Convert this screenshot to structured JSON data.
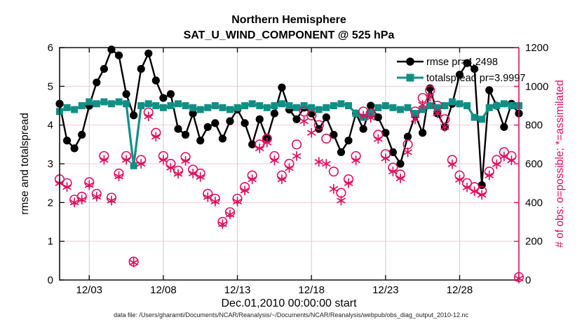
{
  "figure": {
    "title_line1": "Northern Hemisphere",
    "title_line2": "SAT_U_WIND_COMPONENT @ 525 hPa",
    "footer": "data file: /Users/gharamti/Documents/NCAR/Reanalysis/~/Documents/NCAR/Reanalysis/webpub/obs_diag_output_2010-12.nc"
  },
  "legend": {
    "rmse_label": "rmse pr=4.2498",
    "totalspread_label": "totalspread pr=3.9997"
  },
  "colors": {
    "rmse": "#000000",
    "totalspread": "#128f85",
    "obs": "#dd1060",
    "grid_vertical": "#cccccc",
    "grid_horizontal": "#f6c9d8",
    "axis_left": "#111111",
    "axis_right": "#dd1060"
  },
  "chart_data": {
    "type": "line",
    "title": "Northern Hemisphere — SAT_U_WIND_COMPONENT @ 525 hPa",
    "xlabel": "Dec.01,2010 00:00:00 start",
    "ylabel_left": "rmse and totalspread",
    "ylabel_right": "# of obs: o=possible; *=assimilated",
    "xlim_days": [
      0,
      31
    ],
    "ylim_left": [
      0,
      6
    ],
    "ylim_right": [
      0,
      1200
    ],
    "grid": true,
    "legend_position": "top-right-inside",
    "time_step_days": 0.5,
    "start_time": "Dec.01,2010 00:00:00",
    "xticks": [
      {
        "day": 2,
        "label": "12/03"
      },
      {
        "day": 7,
        "label": "12/08"
      },
      {
        "day": 12,
        "label": "12/13"
      },
      {
        "day": 17,
        "label": "12/18"
      },
      {
        "day": 22,
        "label": "12/23"
      },
      {
        "day": 27,
        "label": "12/28"
      }
    ],
    "yticks_left": [
      0,
      1,
      2,
      3,
      4,
      5,
      6
    ],
    "yticks_right": [
      0,
      200,
      400,
      600,
      800,
      1000,
      1200
    ],
    "series": [
      {
        "name": "rmse",
        "axis": "left",
        "marker": "filled-circle",
        "color": "#000000",
        "stat": "pr=4.2498",
        "values": [
          4.55,
          3.6,
          3.4,
          3.75,
          4.5,
          5.1,
          5.45,
          5.95,
          5.8,
          4.8,
          4.25,
          5.45,
          5.85,
          5.15,
          4.7,
          4.8,
          3.9,
          3.75,
          4.3,
          3.6,
          3.95,
          4.05,
          3.65,
          4.1,
          4.4,
          4.05,
          3.5,
          4.15,
          3.65,
          4.3,
          4.97,
          4.4,
          4.15,
          4.45,
          4.3,
          3.9,
          4.2,
          3.75,
          3.3,
          3.6,
          4.3,
          3.9,
          4.5,
          4.2,
          3.8,
          3.3,
          3.0,
          3.7,
          4.25,
          3.8,
          4.95,
          4.3,
          3.95,
          4.55,
          5.3,
          5.6,
          5.45,
          2.45,
          4.9,
          4.5,
          3.95,
          4.55,
          4.3
        ]
      },
      {
        "name": "totalspread",
        "axis": "left",
        "marker": "filled-square",
        "color": "#128f85",
        "stat": "pr=3.9997",
        "values": [
          4.35,
          4.45,
          4.4,
          4.5,
          4.6,
          4.55,
          4.6,
          4.55,
          4.6,
          4.55,
          2.95,
          4.5,
          4.55,
          4.5,
          4.45,
          4.5,
          4.55,
          4.5,
          4.45,
          4.4,
          4.45,
          4.5,
          4.45,
          4.4,
          4.45,
          4.5,
          4.55,
          4.5,
          4.45,
          4.5,
          4.55,
          4.5,
          4.45,
          4.5,
          4.45,
          4.4,
          4.45,
          4.5,
          4.55,
          4.5,
          4.3,
          4.2,
          4.3,
          4.45,
          4.5,
          4.45,
          4.4,
          4.45,
          4.3,
          4.4,
          4.5,
          4.45,
          4.5,
          4.6,
          4.55,
          4.5,
          4.2,
          4.15,
          4.45,
          4.5,
          4.55,
          4.5,
          4.5
        ]
      },
      {
        "name": "obs_possible",
        "axis": "right",
        "marker": "open-circle",
        "color": "#dd1060",
        "values": [
          520,
          500,
          415,
          430,
          505,
          445,
          640,
          425,
          550,
          640,
          95,
          620,
          865,
          760,
          640,
          600,
          565,
          635,
          570,
          550,
          445,
          420,
          300,
          350,
          420,
          480,
          540,
          700,
          730,
          640,
          540,
          600,
          700,
          870,
          850,
          800,
          730,
          560,
          450,
          520,
          640,
          870,
          860,
          750,
          650,
          580,
          545,
          700,
          870,
          940,
          980,
          900,
          830,
          620,
          540,
          500,
          480,
          460,
          560,
          620,
          660,
          640,
          15
        ]
      },
      {
        "name": "obs_assimilated",
        "axis": "right",
        "marker": "asterisk",
        "color": "#dd1060",
        "values": [
          500,
          480,
          400,
          415,
          490,
          430,
          620,
          410,
          535,
          620,
          90,
          600,
          845,
          740,
          620,
          580,
          548,
          615,
          550,
          532,
          428,
          405,
          288,
          338,
          405,
          462,
          520,
          680,
          710,
          618,
          520,
          578,
          640,
          820,
          760,
          610,
          600,
          470,
          410,
          500,
          618,
          848,
          838,
          728,
          628,
          560,
          525,
          660,
          830,
          905,
          945,
          860,
          790,
          598,
          518,
          478,
          458,
          440,
          540,
          598,
          638,
          618,
          8
        ]
      }
    ]
  }
}
